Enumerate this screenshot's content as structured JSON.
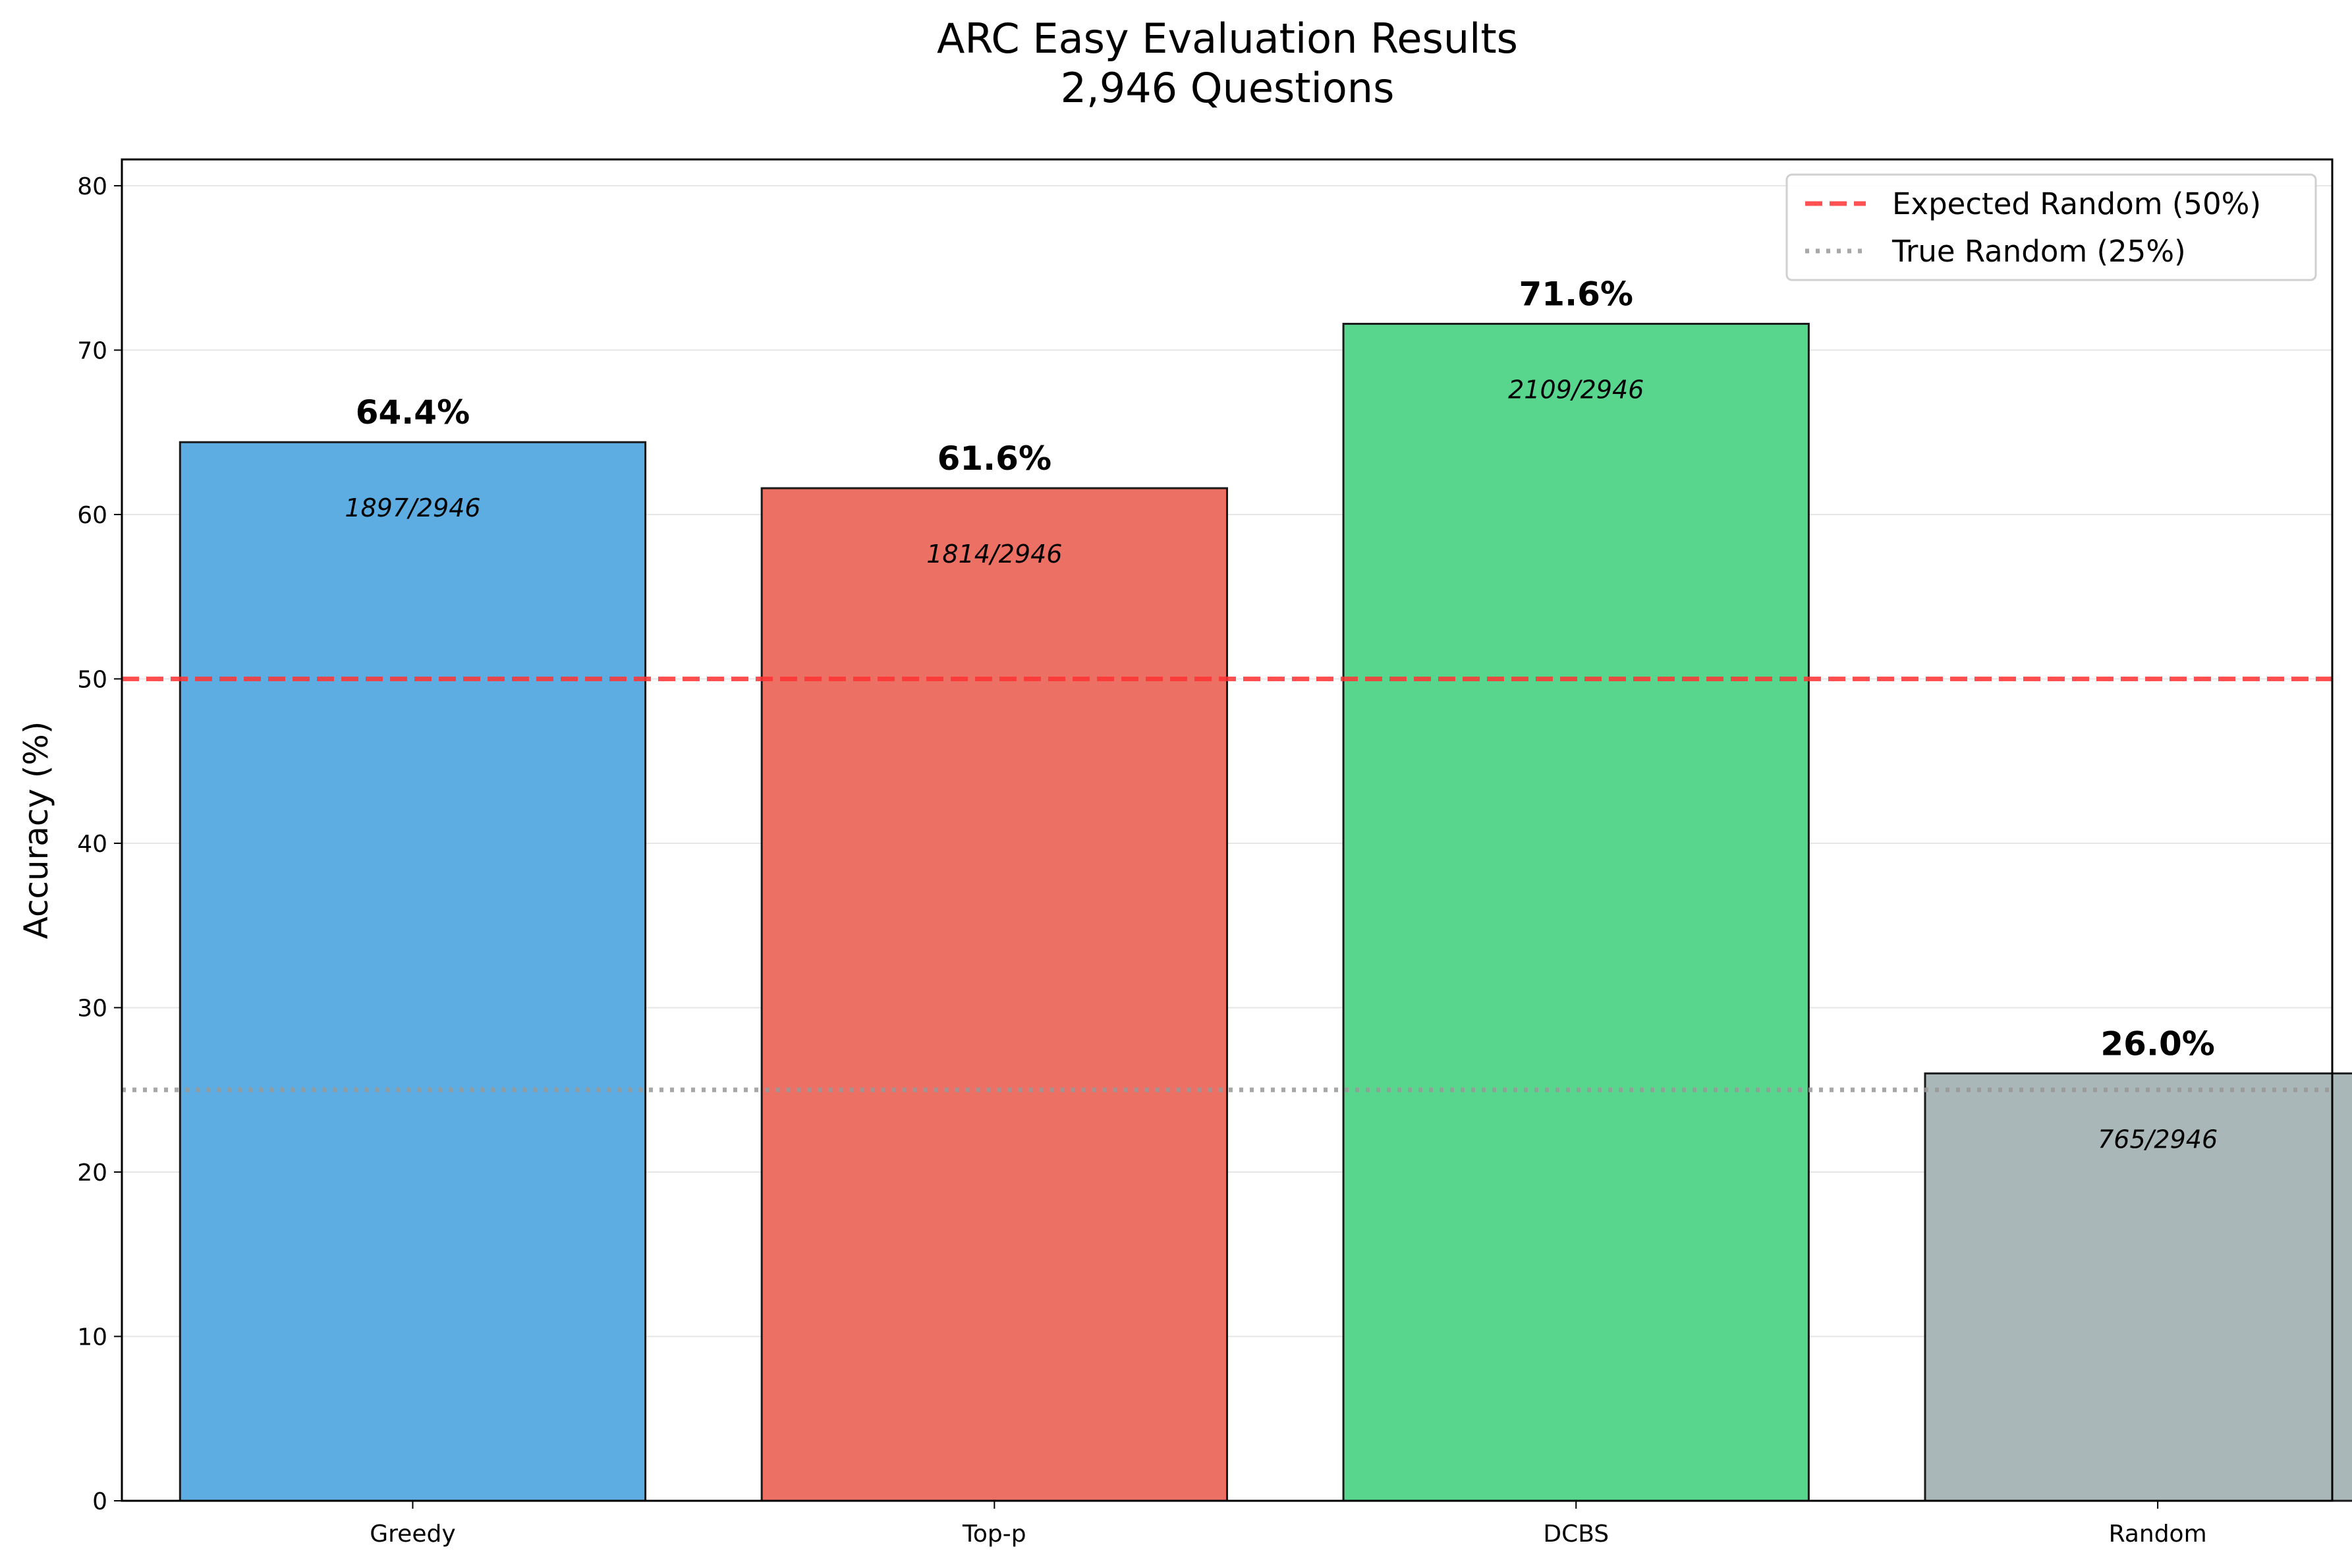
{
  "chart_data": {
    "type": "bar",
    "title": "ARC Easy Evaluation Results",
    "subtitle": "2,946 Questions",
    "xlabel": "",
    "ylabel": "Accuracy (%)",
    "ylim": [
      0,
      81.6
    ],
    "yticks": [
      0,
      10,
      20,
      30,
      40,
      50,
      60,
      70,
      80
    ],
    "grid": "horizontal",
    "categories": [
      "Greedy",
      "Top-p",
      "DCBS",
      "Random"
    ],
    "values": [
      64.4,
      61.6,
      71.6,
      26.0
    ],
    "value_labels": [
      "64.4%",
      "61.6%",
      "71.6%",
      "26.0%"
    ],
    "count_labels": [
      "1897/2946",
      "1814/2946",
      "2109/2946",
      "765/2946"
    ],
    "colors": [
      "#5dade2",
      "#ec7063",
      "#58d68d",
      "#aab7b8"
    ],
    "reference_lines": [
      {
        "label": "Expected Random (50%)",
        "value": 50,
        "color": "#ff3333",
        "style": "dashed"
      },
      {
        "label": "True Random (25%)",
        "value": 25,
        "color": "#999999",
        "style": "dotted"
      }
    ],
    "legend_position": "top-right"
  }
}
